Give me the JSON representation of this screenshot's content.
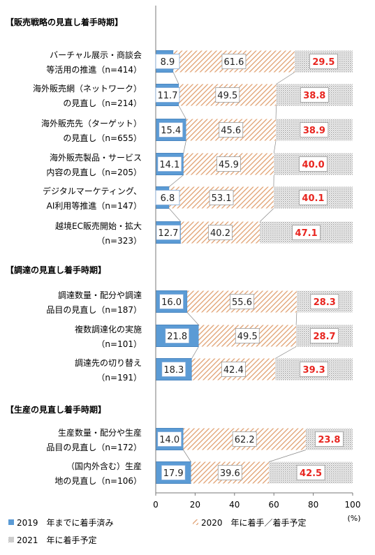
{
  "chart_data": {
    "type": "bar",
    "orientation": "horizontal",
    "stacked": true,
    "series": [
      {
        "name": "2019　年までに着手済み",
        "color": "#5b9bd5",
        "values": [
          8.9,
          11.7,
          15.4,
          14.1,
          6.8,
          12.7,
          16.0,
          21.8,
          18.3,
          14.0,
          17.9
        ]
      },
      {
        "name": "2020　年に着手／着手予定",
        "color": "#e0a070",
        "pattern": "diagonal-hatch",
        "values": [
          61.6,
          49.5,
          45.6,
          45.9,
          53.1,
          40.2,
          55.6,
          49.5,
          42.4,
          62.2,
          39.6
        ]
      },
      {
        "name": "2021　年に着手予定",
        "color": "#b8b8b8",
        "pattern": "crosshatch",
        "values": [
          29.5,
          38.8,
          38.9,
          40.0,
          40.1,
          47.1,
          28.3,
          28.7,
          39.3,
          23.8,
          42.5
        ]
      }
    ],
    "groups": [
      {
        "title": "【販売戦略の見直し着手時期】",
        "categories": [
          [
            "バーチャル展示・商談会",
            "等活用の推進（n=414）"
          ],
          [
            "海外販売網（ネットワーク）",
            "の見直し（n=214）"
          ],
          [
            "海外販売先（ターゲット）",
            "の見直し（n=655）"
          ],
          [
            "海外販売製品・サービス",
            "内容の見直し（n=205）"
          ],
          [
            "デジタルマーケティング、",
            "AI利用等推進（n=147）"
          ],
          [
            "越境EC販売開始・拡大",
            "（n=323）"
          ]
        ]
      },
      {
        "title": "【調達の見直し着手時期】",
        "categories": [
          [
            "調達数量・配分や調達",
            "品目の見直し（n=187）"
          ],
          [
            "複数調達化の実施",
            "（n=101）"
          ],
          [
            "調達先の切り替え",
            "（n=191）"
          ]
        ]
      },
      {
        "title": "【生産の見直し着手時期】",
        "categories": [
          [
            "生産数量・配分や生産",
            "品目の見直し（n=172）"
          ],
          [
            "（国内外含む）生産",
            "地の見直し（n=106）"
          ]
        ]
      }
    ],
    "xlim": [
      0,
      100
    ],
    "xticks": [
      "0",
      "20",
      "40",
      "60",
      "80",
      "100"
    ],
    "xunit": "(%)",
    "legend_position": "bottom-left",
    "highlight_color": "#e8251f"
  }
}
